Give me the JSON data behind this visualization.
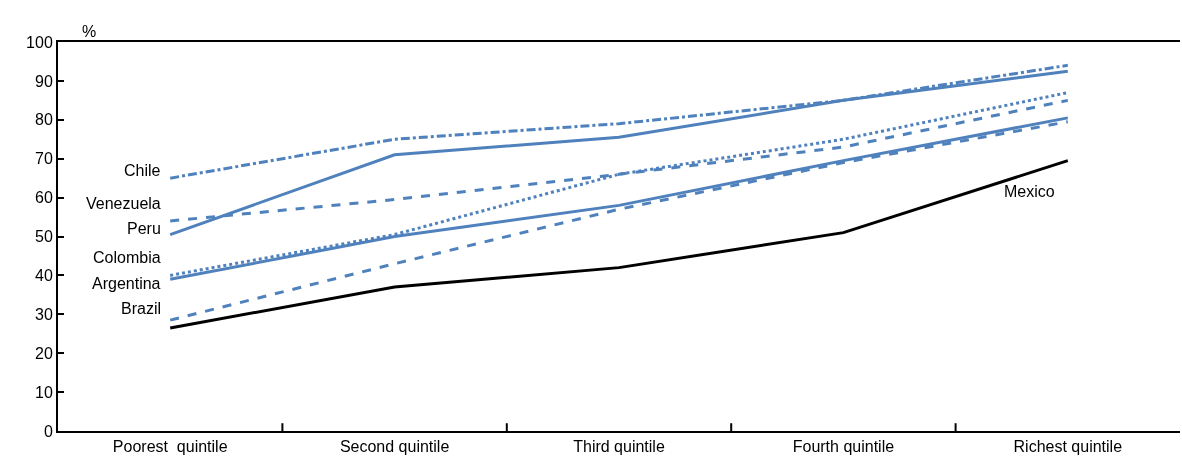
{
  "chart_data": {
    "type": "line",
    "ylabel": "%",
    "categories": [
      "Poorest  quintile",
      "Second quintile",
      "Third quintile",
      "Fourth quintile",
      "Richest quintile"
    ],
    "ylim": [
      0,
      100
    ],
    "yticks": [
      0,
      10,
      20,
      30,
      40,
      50,
      60,
      70,
      80,
      90,
      100
    ],
    "marker": "none",
    "series": [
      {
        "name": "Chile",
        "color": "#4f81bd",
        "line_style": "dashdot",
        "values": [
          65,
          75,
          79,
          85,
          94
        ]
      },
      {
        "name": "Venezuela",
        "color": "#4f81bd",
        "line_style": "dashed",
        "values": [
          54,
          59.5,
          66,
          73,
          85
        ]
      },
      {
        "name": "Peru",
        "color": "#4f81bd",
        "line_style": "solid",
        "values": [
          50.5,
          71,
          75.5,
          85,
          92.5
        ]
      },
      {
        "name": "Colombia",
        "color": "#4f81bd",
        "line_style": "dotted",
        "values": [
          40,
          50.5,
          66,
          75,
          87
        ]
      },
      {
        "name": "Argentina",
        "color": "#4f81bd",
        "line_style": "solid",
        "values": [
          39,
          50,
          58,
          69.5,
          80.5
        ]
      },
      {
        "name": "Brazil",
        "color": "#4f81bd",
        "line_style": "dashed",
        "values": [
          28.5,
          43,
          57,
          69,
          79.5
        ]
      },
      {
        "name": "Mexico",
        "color": "#000000",
        "line_style": "solid",
        "values": [
          26.5,
          37,
          42,
          51,
          69.5
        ]
      }
    ]
  }
}
